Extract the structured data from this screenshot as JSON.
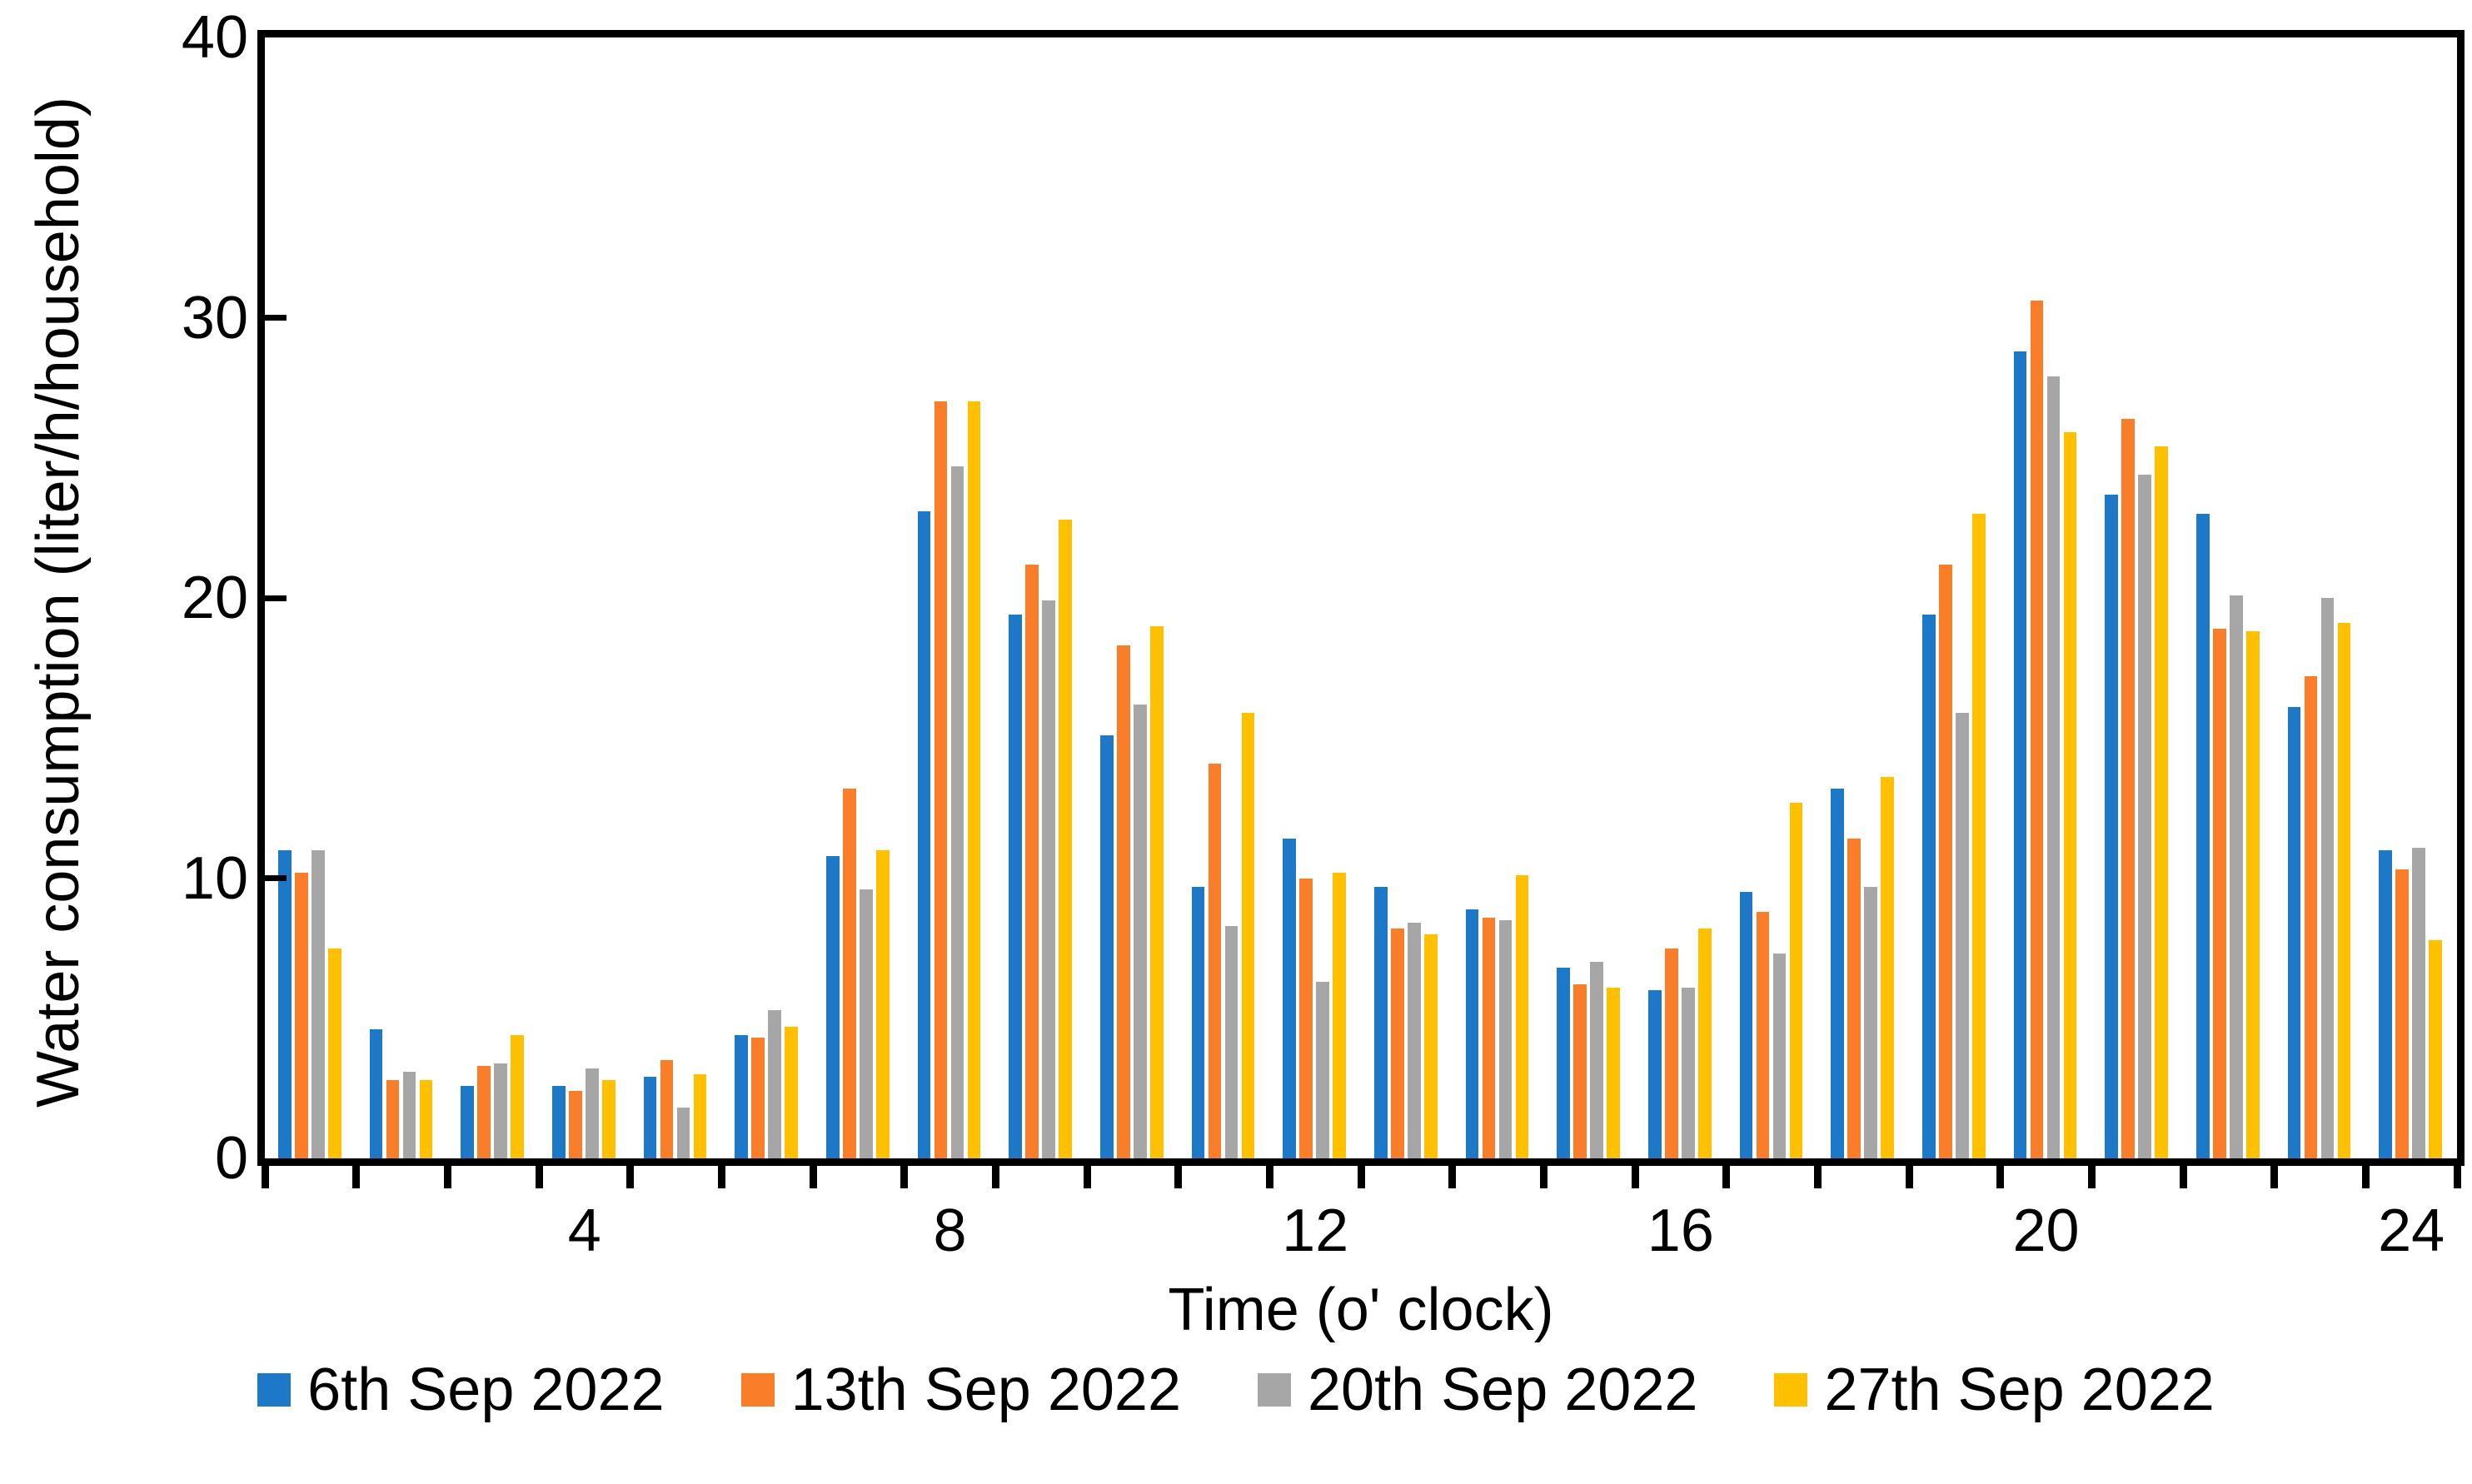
{
  "chart_data": {
    "type": "bar",
    "title": "",
    "xlabel": "Time (o' clock)",
    "ylabel": "Water consumption (liter/h/household)",
    "x": [
      1,
      2,
      3,
      4,
      5,
      6,
      7,
      8,
      9,
      10,
      11,
      12,
      13,
      14,
      15,
      16,
      17,
      18,
      19,
      20,
      21,
      22,
      23,
      24
    ],
    "x_tick_positions": [
      4,
      8,
      12,
      16,
      20,
      24
    ],
    "x_tick_labels": [
      "4",
      "8",
      "12",
      "16",
      "20",
      "24"
    ],
    "y_ticks": [
      0,
      10,
      20,
      30,
      40
    ],
    "ylim": [
      0,
      40
    ],
    "grid": false,
    "legend_position": "bottom",
    "axis_color": "#000000",
    "background_color": "#ffffff",
    "series": [
      {
        "name": "6th Sep 2022",
        "color": "#1E78C8",
        "values": [
          11.0,
          4.6,
          2.6,
          2.6,
          2.9,
          4.4,
          10.8,
          23.1,
          19.4,
          15.1,
          9.7,
          11.4,
          9.7,
          8.9,
          6.8,
          6.0,
          9.5,
          13.2,
          19.4,
          28.8,
          23.7,
          23.0,
          16.1,
          11.0
        ]
      },
      {
        "name": "13th Sep 2022",
        "color": "#FA7D29",
        "values": [
          10.2,
          2.8,
          3.3,
          2.4,
          3.5,
          4.3,
          13.2,
          27.0,
          21.2,
          18.3,
          14.1,
          10.0,
          8.2,
          8.6,
          6.2,
          7.5,
          8.8,
          11.4,
          21.2,
          30.6,
          26.4,
          18.9,
          17.2,
          10.3
        ]
      },
      {
        "name": "20th Sep 2022",
        "color": "#A6A6A6",
        "values": [
          11.0,
          3.1,
          3.4,
          3.2,
          1.8,
          5.3,
          9.6,
          24.7,
          19.9,
          16.2,
          8.3,
          6.3,
          8.4,
          8.5,
          7.0,
          6.1,
          7.3,
          9.7,
          15.9,
          27.9,
          24.4,
          20.1,
          20.0,
          11.1
        ]
      },
      {
        "name": "27th Sep 2022",
        "color": "#FFC000",
        "values": [
          7.5,
          2.8,
          4.4,
          2.8,
          3.0,
          4.7,
          11.0,
          27.0,
          22.8,
          19.0,
          15.9,
          10.2,
          8.0,
          10.1,
          6.1,
          8.2,
          12.7,
          13.6,
          23.0,
          25.9,
          25.4,
          18.8,
          19.1,
          7.8
        ]
      }
    ]
  }
}
